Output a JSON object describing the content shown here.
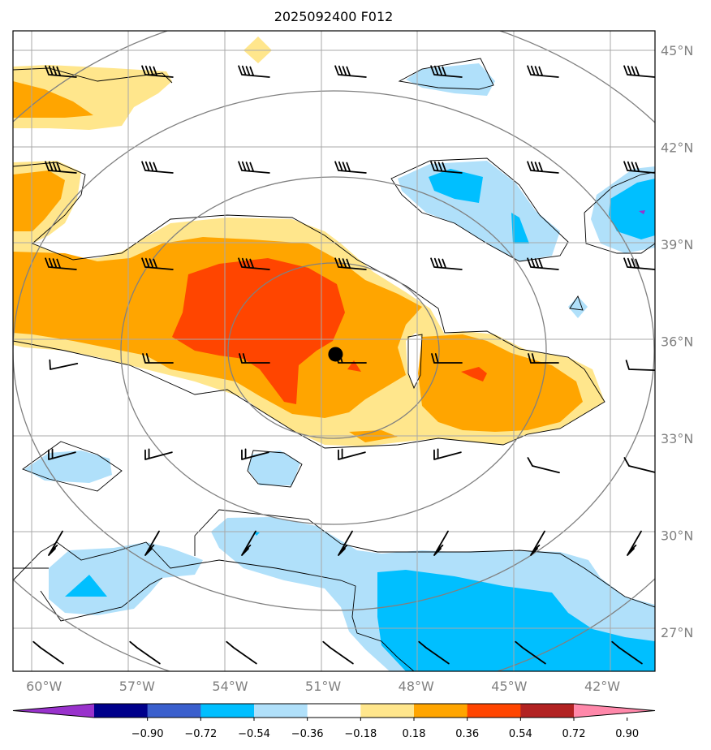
{
  "title": "2025092400 F012",
  "map": {
    "lon_range": [
      -61,
      -40.3
    ],
    "lat_range": [
      25.8,
      45.6
    ],
    "lon_ticks": [
      {
        "lon": -60,
        "label": "60°W"
      },
      {
        "lon": -57,
        "label": "57°W"
      },
      {
        "lon": -54,
        "label": "54°W"
      },
      {
        "lon": -51,
        "label": "51°W"
      },
      {
        "lon": -48,
        "label": "48°W"
      },
      {
        "lon": -45,
        "label": "45°W"
      },
      {
        "lon": -42,
        "label": "42°W"
      }
    ],
    "lat_ticks": [
      {
        "lat": 45,
        "label": "45°N"
      },
      {
        "lat": 42,
        "label": "42°N"
      },
      {
        "lat": 39,
        "label": "39°N"
      },
      {
        "lat": 36,
        "label": "36°N"
      },
      {
        "lat": 33,
        "label": "33°N"
      },
      {
        "lat": 30,
        "label": "30°N"
      },
      {
        "lat": 27,
        "label": "27°N"
      }
    ],
    "storm_center": {
      "lon": -50.6,
      "lat": 35.6
    }
  },
  "colorbar": {
    "tick_labels": [
      "−0.90",
      "−0.72",
      "−0.54",
      "−0.36",
      "−0.18",
      "0.18",
      "0.36",
      "0.54",
      "0.72",
      "0.90"
    ],
    "colors": [
      "#9932cc",
      "#00008b",
      "#3a5fcd",
      "#00bfff",
      "#b0e0fa",
      "#ffffff",
      "#ffe68c",
      "#ffa500",
      "#ff4500",
      "#b22222",
      "#ff88aa"
    ]
  }
}
